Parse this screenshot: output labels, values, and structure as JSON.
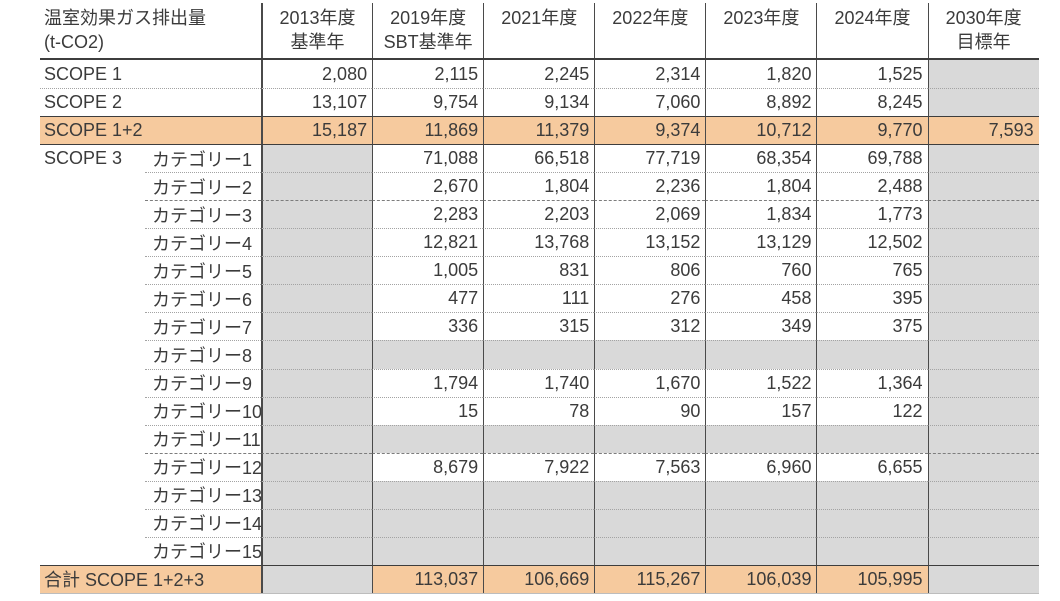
{
  "colors": {
    "highlight": "#f6ca9e",
    "empty_cell": "#d9d9d9",
    "text": "#3b3b3b"
  },
  "chart_data": {
    "type": "table",
    "title_line1": "温室効果ガス排出量",
    "title_line2": "(t-CO2)",
    "unit": "t-CO2",
    "columns": [
      {
        "line1": "2013年度",
        "line2": "基準年"
      },
      {
        "line1": "2019年度",
        "line2": "SBT基準年"
      },
      {
        "line1": "2021年度",
        "line2": ""
      },
      {
        "line1": "2022年度",
        "line2": ""
      },
      {
        "line1": "2023年度",
        "line2": ""
      },
      {
        "line1": "2024年度",
        "line2": ""
      },
      {
        "line1": "2030年度",
        "line2": "目標年"
      }
    ],
    "rows": [
      {
        "scope": "SCOPE 1",
        "category": null,
        "span_label": true,
        "highlight": false,
        "values": [
          "2,080",
          "2,115",
          "2,245",
          "2,314",
          "1,820",
          "1,525",
          null
        ]
      },
      {
        "scope": "SCOPE 2",
        "category": null,
        "span_label": true,
        "highlight": false,
        "values": [
          "13,107",
          "9,754",
          "9,134",
          "7,060",
          "8,892",
          "8,245",
          null
        ]
      },
      {
        "scope": "SCOPE 1+2",
        "category": null,
        "span_label": true,
        "highlight": true,
        "values": [
          "15,187",
          "11,869",
          "11,379",
          "9,374",
          "10,712",
          "9,770",
          "7,593"
        ]
      },
      {
        "scope": "SCOPE 3",
        "category": "カテゴリー1",
        "span_label": false,
        "highlight": false,
        "values": [
          null,
          "71,088",
          "66,518",
          "77,719",
          "68,354",
          "69,788",
          null
        ]
      },
      {
        "scope": "",
        "category": "カテゴリー2",
        "span_label": false,
        "highlight": false,
        "values": [
          null,
          "2,670",
          "1,804",
          "2,236",
          "1,804",
          "2,488",
          null
        ]
      },
      {
        "scope": "",
        "category": "カテゴリー3",
        "span_label": false,
        "highlight": false,
        "values": [
          null,
          "2,283",
          "2,203",
          "2,069",
          "1,834",
          "1,773",
          null
        ]
      },
      {
        "scope": "",
        "category": "カテゴリー4",
        "span_label": false,
        "highlight": false,
        "values": [
          null,
          "12,821",
          "13,768",
          "13,152",
          "13,129",
          "12,502",
          null
        ]
      },
      {
        "scope": "",
        "category": "カテゴリー5",
        "span_label": false,
        "highlight": false,
        "values": [
          null,
          "1,005",
          "831",
          "806",
          "760",
          "765",
          null
        ]
      },
      {
        "scope": "",
        "category": "カテゴリー6",
        "span_label": false,
        "highlight": false,
        "values": [
          null,
          "477",
          "111",
          "276",
          "458",
          "395",
          null
        ]
      },
      {
        "scope": "",
        "category": "カテゴリー7",
        "span_label": false,
        "highlight": false,
        "values": [
          null,
          "336",
          "315",
          "312",
          "349",
          "375",
          null
        ]
      },
      {
        "scope": "",
        "category": "カテゴリー8",
        "span_label": false,
        "highlight": false,
        "values": [
          null,
          null,
          null,
          null,
          null,
          null,
          null
        ]
      },
      {
        "scope": "",
        "category": "カテゴリー9",
        "span_label": false,
        "highlight": false,
        "values": [
          null,
          "1,794",
          "1,740",
          "1,670",
          "1,522",
          "1,364",
          null
        ]
      },
      {
        "scope": "",
        "category": "カテゴリー10",
        "span_label": false,
        "highlight": false,
        "values": [
          null,
          "15",
          "78",
          "90",
          "157",
          "122",
          null
        ]
      },
      {
        "scope": "",
        "category": "カテゴリー11",
        "span_label": false,
        "highlight": false,
        "values": [
          null,
          null,
          null,
          null,
          null,
          null,
          null
        ]
      },
      {
        "scope": "",
        "category": "カテゴリー12",
        "span_label": false,
        "highlight": false,
        "values": [
          null,
          "8,679",
          "7,922",
          "7,563",
          "6,960",
          "6,655",
          null
        ]
      },
      {
        "scope": "",
        "category": "カテゴリー13",
        "span_label": false,
        "highlight": false,
        "values": [
          null,
          null,
          null,
          null,
          null,
          null,
          null
        ]
      },
      {
        "scope": "",
        "category": "カテゴリー14",
        "span_label": false,
        "highlight": false,
        "values": [
          null,
          null,
          null,
          null,
          null,
          null,
          null
        ]
      },
      {
        "scope": "",
        "category": "カテゴリー15",
        "span_label": false,
        "highlight": false,
        "values": [
          null,
          null,
          null,
          null,
          null,
          null,
          null
        ]
      },
      {
        "scope": "合計 SCOPE 1+2+3",
        "category": null,
        "span_label": true,
        "highlight": true,
        "values": [
          null,
          "113,037",
          "106,669",
          "115,267",
          "106,039",
          "105,995",
          null
        ]
      }
    ]
  }
}
